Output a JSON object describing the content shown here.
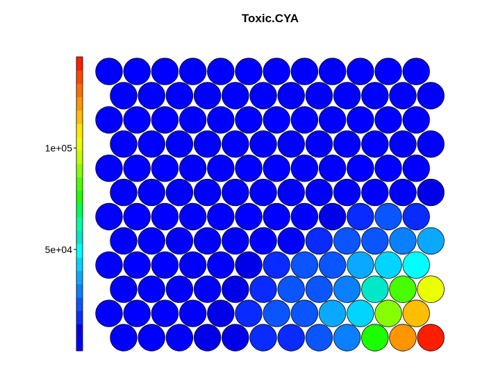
{
  "chart_data": {
    "type": "heatmap",
    "title": "Toxic.CYA",
    "layout": "hexagonal SOM grid, 12 columns x 12 rows, odd rows offset (row 1 = bottom)",
    "colorbar": {
      "ticks": [
        {
          "value": 50000,
          "label": "5e+04"
        },
        {
          "value": 100000,
          "label": "1e+05"
        }
      ],
      "range": [
        0,
        145000
      ],
      "colors": [
        "#0000ff",
        "#0000e8",
        "#0a2bff",
        "#0b55ff",
        "#0a7fff",
        "#0aa9ff",
        "#00d4ff",
        "#00ffff",
        "#00e8c8",
        "#00ffa0",
        "#00ff55",
        "#1cff00",
        "#48ff00",
        "#86ff00",
        "#c0ff00",
        "#eaff00",
        "#ffe600",
        "#ffbe00",
        "#ff9600",
        "#ff6e00",
        "#ff4600",
        "#ff1e00"
      ]
    },
    "rows": [
      [
        5000,
        5000,
        5000,
        8000,
        13000,
        15000,
        17000,
        25000,
        32000,
        73000,
        125000,
        145000
      ],
      [
        5000,
        5000,
        5000,
        5000,
        11000,
        15000,
        20000,
        25000,
        35000,
        45000,
        88000,
        115000
      ],
      [
        5000,
        5000,
        5000,
        5000,
        12000,
        15000,
        20000,
        22000,
        30000,
        55000,
        80000,
        100000
      ],
      [
        5000,
        5000,
        5000,
        5000,
        5000,
        7000,
        15000,
        20000,
        22000,
        35000,
        45000,
        52000
      ],
      [
        5000,
        5000,
        5000,
        5000,
        5000,
        5000,
        5000,
        15000,
        20000,
        25000,
        30000,
        35000
      ],
      [
        5000,
        5000,
        5000,
        5000,
        5000,
        5000,
        5000,
        5000,
        7000,
        15000,
        20000,
        15000
      ],
      [
        5000,
        5000,
        5000,
        5000,
        5000,
        5000,
        5000,
        5000,
        5000,
        5000,
        5000,
        7000
      ],
      [
        5000,
        5000,
        5000,
        5000,
        5000,
        5000,
        5000,
        5000,
        5000,
        5000,
        5000,
        5000
      ],
      [
        5000,
        5000,
        5000,
        5000,
        5000,
        5000,
        5000,
        5000,
        5000,
        5000,
        5000,
        5000
      ],
      [
        5000,
        5000,
        5000,
        5000,
        5000,
        5000,
        5000,
        5000,
        5000,
        5000,
        5000,
        5000
      ],
      [
        5000,
        5000,
        5000,
        5000,
        5000,
        5000,
        5000,
        5000,
        5000,
        5000,
        5000,
        5000
      ],
      [
        5000,
        5000,
        5000,
        5000,
        5000,
        5000,
        5000,
        5000,
        5000,
        5000,
        5000,
        5000
      ]
    ]
  }
}
